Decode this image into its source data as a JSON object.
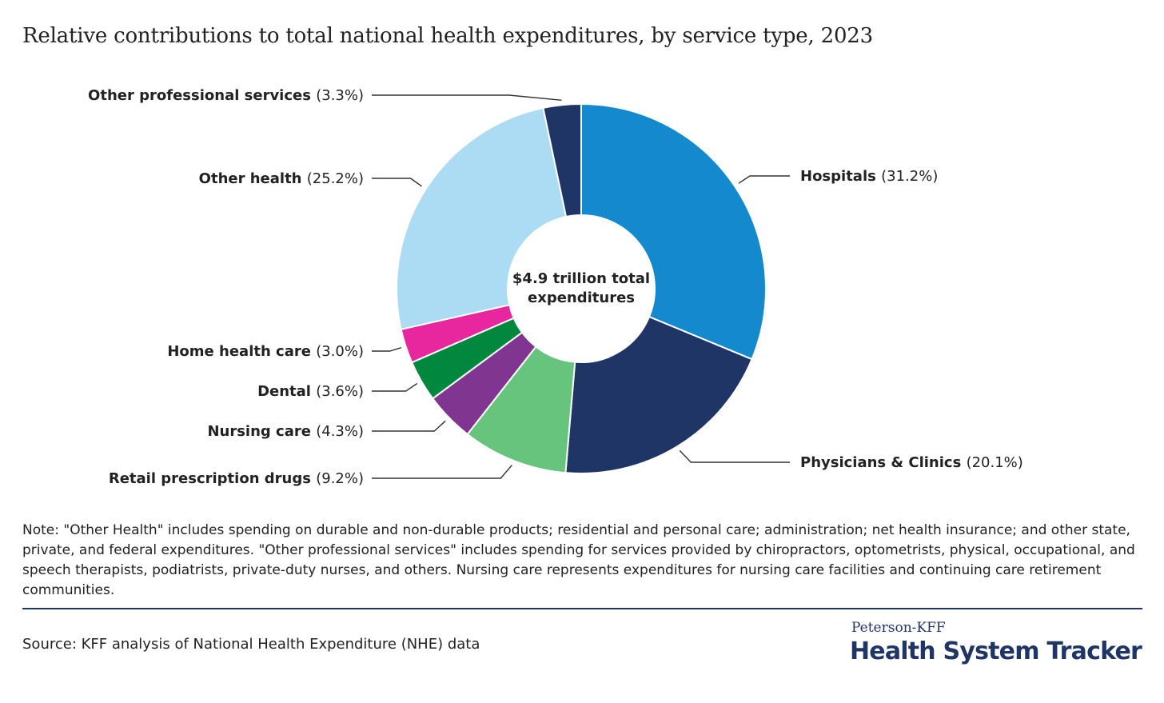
{
  "chart_data": {
    "type": "pie",
    "title": "Relative contributions to total national health expenditures, by service type, 2023",
    "center_label": [
      "$4.9 trillion total",
      "expenditures"
    ],
    "slices": [
      {
        "name": "Hospitals",
        "value": 31.2,
        "label": "(31.2%)",
        "color": "#1589cd"
      },
      {
        "name": "Physicians & Clinics",
        "value": 20.1,
        "label": "(20.1%)",
        "color": "#1f3566"
      },
      {
        "name": "Retail prescription drugs",
        "value": 9.2,
        "label": "(9.2%)",
        "color": "#66c47d"
      },
      {
        "name": "Nursing care",
        "value": 4.3,
        "label": "(4.3%)",
        "color": "#803690"
      },
      {
        "name": "Dental",
        "value": 3.6,
        "label": "(3.6%)",
        "color": "#02873e"
      },
      {
        "name": "Home health care",
        "value": 3.0,
        "label": "(3.0%)",
        "color": "#e8269e"
      },
      {
        "name": "Other health",
        "value": 25.2,
        "label": "(25.2%)",
        "color": "#acdcf4"
      },
      {
        "name": "Other professional services",
        "value": 3.3,
        "label": "(3.3%)",
        "color": "#1f3566"
      }
    ]
  },
  "note": "Note: \"Other Health\" includes spending on durable and non-durable products; residential and personal care; administration; net health insurance; and other state, private, and federal expenditures. \"Other professional services\" includes spending for services provided by  chiropractors, optometrists, physical, occupational, and speech therapists, podiatrists, private-duty nurses, and others. Nursing care represents expenditures  for nursing care facilities  and continuing care  retirement communities.",
  "source": "Source: KFF analysis of National Health Expenditure (NHE) data",
  "brand": {
    "small": "Peterson-KFF",
    "big": "Health System Tracker"
  }
}
